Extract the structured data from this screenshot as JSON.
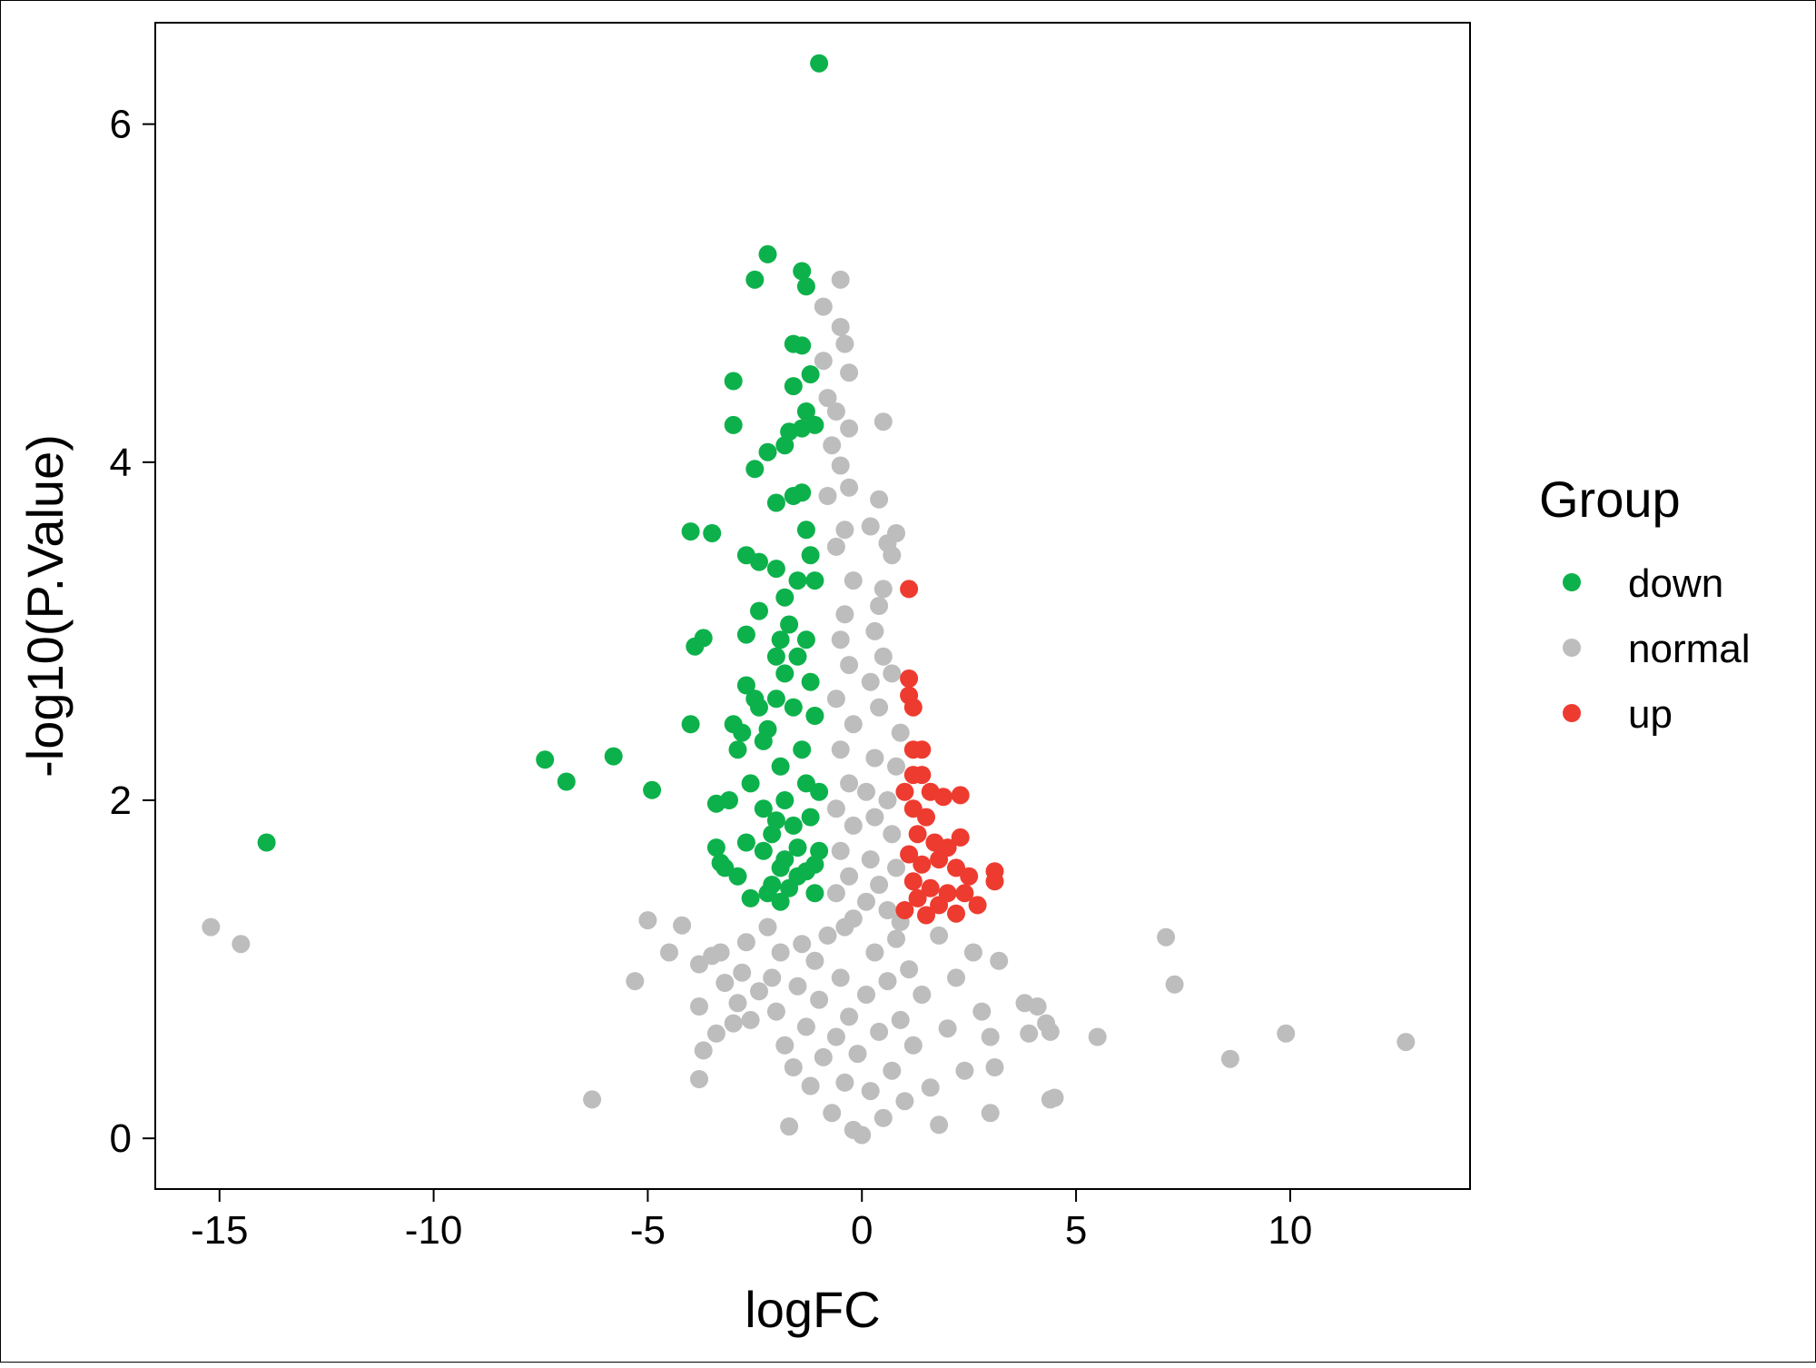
{
  "chart_data": {
    "type": "scatter",
    "title": "",
    "xlabel": "logFC",
    "ylabel": "-log10(P.Value)",
    "xlim": [
      -16.5,
      14.2
    ],
    "ylim": [
      -0.3,
      6.6
    ],
    "xticks": [
      -15,
      -10,
      -5,
      0,
      5,
      10
    ],
    "xtick_labels": [
      "-15",
      "-10",
      "-5",
      "0",
      "5",
      "10"
    ],
    "yticks": [
      0,
      2,
      4,
      6
    ],
    "ytick_labels": [
      "0",
      "2",
      "4",
      "6"
    ],
    "grid": false,
    "legend": {
      "title": "Group",
      "placement": "right",
      "entries": [
        {
          "label": "down",
          "color": "#0DB14B"
        },
        {
          "label": "normal",
          "color": "#BDBDBD"
        },
        {
          "label": "up",
          "color": "#EE3B2F"
        }
      ]
    },
    "series": [
      {
        "name": "normal",
        "color": "#BDBDBD",
        "points": [
          [
            -15.2,
            1.25
          ],
          [
            -14.5,
            1.15
          ],
          [
            -6.3,
            0.23
          ],
          [
            -5.3,
            0.93
          ],
          [
            -5.0,
            1.29
          ],
          [
            -4.5,
            1.1
          ],
          [
            -4.2,
            1.26
          ],
          [
            -3.8,
            1.03
          ],
          [
            -3.8,
            0.78
          ],
          [
            -3.7,
            0.52
          ],
          [
            -3.8,
            0.35
          ],
          [
            -3.5,
            1.08
          ],
          [
            -3.4,
            0.62
          ],
          [
            -3.3,
            1.1
          ],
          [
            -3.2,
            0.92
          ],
          [
            -3.0,
            0.68
          ],
          [
            -2.9,
            0.8
          ],
          [
            -2.8,
            0.98
          ],
          [
            -2.7,
            1.16
          ],
          [
            -2.6,
            0.7
          ],
          [
            -2.4,
            0.87
          ],
          [
            -2.2,
            1.25
          ],
          [
            -2.1,
            0.95
          ],
          [
            -2.0,
            0.75
          ],
          [
            -1.9,
            1.1
          ],
          [
            -1.8,
            0.55
          ],
          [
            -1.7,
            0.07
          ],
          [
            -1.6,
            0.42
          ],
          [
            -1.5,
            0.9
          ],
          [
            -1.4,
            1.15
          ],
          [
            -1.3,
            0.66
          ],
          [
            -1.2,
            0.31
          ],
          [
            -1.1,
            1.05
          ],
          [
            -1.0,
            0.82
          ],
          [
            -0.9,
            0.48
          ],
          [
            -0.8,
            1.2
          ],
          [
            -0.7,
            0.15
          ],
          [
            -0.6,
            0.6
          ],
          [
            -0.5,
            0.95
          ],
          [
            -0.4,
            0.33
          ],
          [
            -0.3,
            0.72
          ],
          [
            -0.2,
            0.05
          ],
          [
            -0.1,
            0.5
          ],
          [
            0.0,
            0.02
          ],
          [
            0.1,
            0.85
          ],
          [
            0.2,
            0.28
          ],
          [
            0.3,
            1.1
          ],
          [
            0.4,
            0.63
          ],
          [
            0.5,
            0.12
          ],
          [
            0.6,
            0.93
          ],
          [
            0.7,
            0.4
          ],
          [
            0.8,
            1.18
          ],
          [
            0.9,
            0.7
          ],
          [
            1.0,
            0.22
          ],
          [
            1.1,
            1.0
          ],
          [
            1.2,
            0.55
          ],
          [
            1.4,
            0.85
          ],
          [
            1.6,
            0.3
          ],
          [
            1.8,
            0.08
          ],
          [
            1.8,
            1.2
          ],
          [
            2.0,
            0.65
          ],
          [
            2.2,
            0.95
          ],
          [
            2.4,
            0.4
          ],
          [
            2.6,
            1.1
          ],
          [
            2.8,
            0.75
          ],
          [
            3.0,
            0.15
          ],
          [
            3.0,
            0.6
          ],
          [
            3.2,
            1.05
          ],
          [
            3.1,
            0.42
          ],
          [
            3.8,
            0.8
          ],
          [
            3.9,
            0.62
          ],
          [
            4.1,
            0.78
          ],
          [
            4.3,
            0.68
          ],
          [
            4.4,
            0.63
          ],
          [
            4.4,
            0.23
          ],
          [
            4.5,
            0.24
          ],
          [
            5.5,
            0.6
          ],
          [
            7.1,
            1.19
          ],
          [
            7.3,
            0.91
          ],
          [
            8.6,
            0.47
          ],
          [
            9.9,
            0.62
          ],
          [
            12.7,
            0.57
          ],
          [
            -0.9,
            4.92
          ],
          [
            -0.5,
            5.08
          ],
          [
            -0.5,
            4.8
          ],
          [
            -0.4,
            4.7
          ],
          [
            -0.3,
            4.53
          ],
          [
            -0.9,
            4.6
          ],
          [
            -0.8,
            4.38
          ],
          [
            -0.6,
            4.3
          ],
          [
            -0.3,
            4.2
          ],
          [
            0.5,
            4.24
          ],
          [
            -0.7,
            4.1
          ],
          [
            -0.5,
            3.98
          ],
          [
            -0.8,
            3.8
          ],
          [
            -0.3,
            3.85
          ],
          [
            0.4,
            3.78
          ],
          [
            -0.4,
            3.6
          ],
          [
            -0.6,
            3.5
          ],
          [
            0.2,
            3.62
          ],
          [
            0.6,
            3.52
          ],
          [
            0.8,
            3.58
          ],
          [
            0.7,
            3.45
          ],
          [
            -0.2,
            3.3
          ],
          [
            0.5,
            3.25
          ],
          [
            -0.4,
            3.1
          ],
          [
            0.4,
            3.15
          ],
          [
            0.3,
            3.0
          ],
          [
            -0.5,
            2.95
          ],
          [
            0.5,
            2.85
          ],
          [
            -0.3,
            2.8
          ],
          [
            0.2,
            2.7
          ],
          [
            0.7,
            2.75
          ],
          [
            -0.6,
            2.6
          ],
          [
            0.4,
            2.55
          ],
          [
            -0.2,
            2.45
          ],
          [
            0.9,
            2.4
          ],
          [
            -0.5,
            2.3
          ],
          [
            0.3,
            2.25
          ],
          [
            0.8,
            2.2
          ],
          [
            -0.3,
            2.1
          ],
          [
            0.1,
            2.05
          ],
          [
            0.6,
            2.0
          ],
          [
            -0.6,
            1.95
          ],
          [
            0.3,
            1.9
          ],
          [
            -0.2,
            1.85
          ],
          [
            0.7,
            1.8
          ],
          [
            -0.5,
            1.7
          ],
          [
            0.2,
            1.65
          ],
          [
            0.8,
            1.6
          ],
          [
            -0.3,
            1.55
          ],
          [
            0.4,
            1.5
          ],
          [
            -0.6,
            1.45
          ],
          [
            0.1,
            1.4
          ],
          [
            0.6,
            1.35
          ],
          [
            -0.2,
            1.3
          ],
          [
            0.9,
            1.28
          ],
          [
            -0.4,
            1.25
          ]
        ]
      },
      {
        "name": "down",
        "color": "#0DB14B",
        "points": [
          [
            -13.9,
            1.75
          ],
          [
            -7.4,
            2.24
          ],
          [
            -6.9,
            2.11
          ],
          [
            -5.8,
            2.26
          ],
          [
            -4.9,
            2.06
          ],
          [
            -4.0,
            3.59
          ],
          [
            -4.0,
            2.45
          ],
          [
            -3.9,
            2.91
          ],
          [
            -3.7,
            2.96
          ],
          [
            -3.5,
            3.58
          ],
          [
            -3.4,
            1.98
          ],
          [
            -3.4,
            1.72
          ],
          [
            -3.3,
            1.63
          ],
          [
            -3.2,
            1.6
          ],
          [
            -3.1,
            2.0
          ],
          [
            -3.0,
            4.48
          ],
          [
            -3.0,
            4.22
          ],
          [
            -3.0,
            2.45
          ],
          [
            -2.9,
            2.3
          ],
          [
            -2.9,
            1.55
          ],
          [
            -2.8,
            2.4
          ],
          [
            -2.7,
            3.45
          ],
          [
            -2.7,
            2.98
          ],
          [
            -2.7,
            2.68
          ],
          [
            -2.7,
            1.75
          ],
          [
            -2.6,
            1.42
          ],
          [
            -2.6,
            2.1
          ],
          [
            -2.5,
            3.96
          ],
          [
            -2.5,
            5.08
          ],
          [
            -2.5,
            2.6
          ],
          [
            -2.4,
            3.41
          ],
          [
            -2.4,
            3.12
          ],
          [
            -2.4,
            2.55
          ],
          [
            -2.3,
            2.35
          ],
          [
            -2.3,
            1.95
          ],
          [
            -2.2,
            5.23
          ],
          [
            -2.2,
            4.06
          ],
          [
            -2.2,
            2.42
          ],
          [
            -2.1,
            1.8
          ],
          [
            -2.1,
            1.5
          ],
          [
            -2.0,
            3.76
          ],
          [
            -2.0,
            3.37
          ],
          [
            -2.0,
            2.85
          ],
          [
            -2.0,
            2.6
          ],
          [
            -1.9,
            2.95
          ],
          [
            -1.9,
            2.2
          ],
          [
            -1.9,
            1.4
          ],
          [
            -1.8,
            4.1
          ],
          [
            -1.8,
            3.2
          ],
          [
            -1.8,
            2.75
          ],
          [
            -1.8,
            1.65
          ],
          [
            -1.7,
            4.18
          ],
          [
            -1.7,
            3.04
          ],
          [
            -1.6,
            4.7
          ],
          [
            -1.6,
            4.45
          ],
          [
            -1.6,
            3.8
          ],
          [
            -1.6,
            2.55
          ],
          [
            -1.6,
            1.85
          ],
          [
            -1.5,
            3.3
          ],
          [
            -1.5,
            2.85
          ],
          [
            -1.5,
            1.55
          ],
          [
            -1.4,
            5.13
          ],
          [
            -1.4,
            4.69
          ],
          [
            -1.4,
            4.2
          ],
          [
            -1.4,
            3.82
          ],
          [
            -1.4,
            2.3
          ],
          [
            -1.3,
            5.04
          ],
          [
            -1.3,
            4.3
          ],
          [
            -1.3,
            3.6
          ],
          [
            -1.3,
            2.95
          ],
          [
            -1.3,
            2.1
          ],
          [
            -1.2,
            4.52
          ],
          [
            -1.2,
            3.45
          ],
          [
            -1.2,
            2.7
          ],
          [
            -1.2,
            1.9
          ],
          [
            -1.1,
            4.22
          ],
          [
            -1.1,
            3.3
          ],
          [
            -1.1,
            2.5
          ],
          [
            -1.1,
            1.45
          ],
          [
            -1.0,
            2.05
          ],
          [
            -1.0,
            1.7
          ],
          [
            -1.0,
            6.36
          ],
          [
            -2.2,
            1.45
          ],
          [
            -1.9,
            1.6
          ],
          [
            -1.7,
            1.48
          ],
          [
            -1.5,
            1.72
          ],
          [
            -1.3,
            1.58
          ],
          [
            -1.1,
            1.62
          ],
          [
            -2.3,
            1.7
          ],
          [
            -2.0,
            1.88
          ],
          [
            -1.8,
            2.0
          ]
        ]
      },
      {
        "name": "up",
        "color": "#EE3B2F",
        "points": [
          [
            1.1,
            3.25
          ],
          [
            1.1,
            2.72
          ],
          [
            1.1,
            2.62
          ],
          [
            1.2,
            2.55
          ],
          [
            1.2,
            2.3
          ],
          [
            1.4,
            2.3
          ],
          [
            1.2,
            2.15
          ],
          [
            1.4,
            2.15
          ],
          [
            1.0,
            2.05
          ],
          [
            1.6,
            2.05
          ],
          [
            1.9,
            2.02
          ],
          [
            2.3,
            2.03
          ],
          [
            1.2,
            1.95
          ],
          [
            1.5,
            1.9
          ],
          [
            1.3,
            1.8
          ],
          [
            1.7,
            1.75
          ],
          [
            2.0,
            1.72
          ],
          [
            2.3,
            1.78
          ],
          [
            1.1,
            1.68
          ],
          [
            1.4,
            1.62
          ],
          [
            1.8,
            1.65
          ],
          [
            2.2,
            1.6
          ],
          [
            2.5,
            1.55
          ],
          [
            3.1,
            1.58
          ],
          [
            3.1,
            1.52
          ],
          [
            1.2,
            1.52
          ],
          [
            1.6,
            1.48
          ],
          [
            2.0,
            1.45
          ],
          [
            2.4,
            1.45
          ],
          [
            1.3,
            1.42
          ],
          [
            1.8,
            1.38
          ],
          [
            2.7,
            1.38
          ],
          [
            1.0,
            1.35
          ],
          [
            1.5,
            1.32
          ],
          [
            2.2,
            1.33
          ]
        ]
      }
    ]
  }
}
